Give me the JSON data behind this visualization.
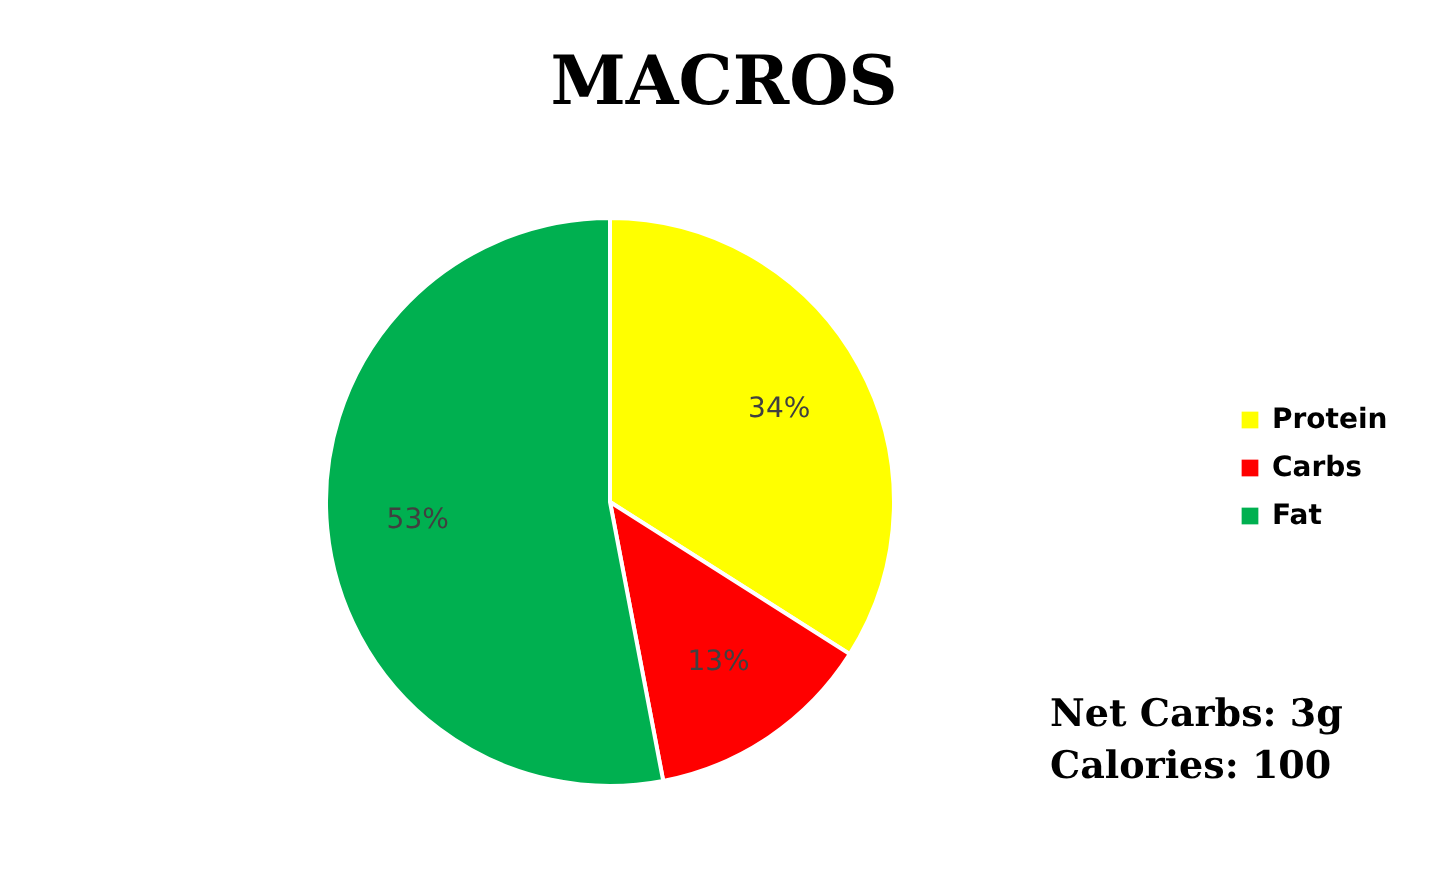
{
  "chart_data": {
    "type": "pie",
    "title": "MACROS",
    "categories": [
      "Protein",
      "Carbs",
      "Fat"
    ],
    "values": [
      34,
      13,
      53
    ],
    "colors": [
      "#ffff00",
      "#ff0000",
      "#00b050"
    ],
    "value_labels": [
      "34%",
      "13%",
      "53%"
    ],
    "legend": "right",
    "annotations": [
      "Net Carbs: 3g",
      "Calories: 100"
    ]
  }
}
